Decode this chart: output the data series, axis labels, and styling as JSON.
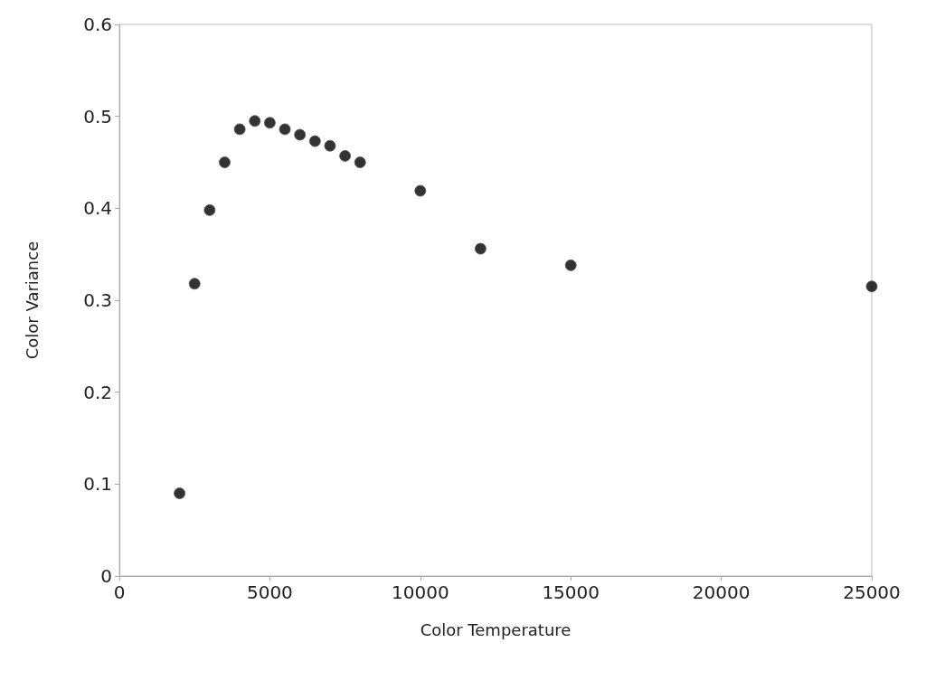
{
  "chart_data": {
    "type": "scatter",
    "xlabel": "Color Temperature",
    "ylabel": "Color Variance",
    "x": [
      2000,
      2500,
      3000,
      3500,
      4000,
      4500,
      5000,
      5500,
      6000,
      6500,
      7000,
      7500,
      8000,
      10000,
      12000,
      15000,
      25000
    ],
    "series": [
      {
        "color": "#000000",
        "values": [
          0.09,
          0.318,
          0.398,
          0.45,
          0.486,
          0.495,
          0.493,
          0.486,
          0.48,
          0.473,
          0.468,
          0.457,
          0.45,
          0.419,
          0.356,
          0.338,
          0.315
        ]
      }
    ],
    "xlim": [
      0,
      25000
    ],
    "xticks": [
      0,
      5000,
      10000,
      15000,
      20000,
      25000
    ],
    "ylim": [
      0,
      0.6
    ],
    "yticks": [
      0,
      0.1,
      0.2,
      0.3,
      0.4,
      0.5,
      0.6
    ],
    "grid": false,
    "marker": "circle"
  }
}
